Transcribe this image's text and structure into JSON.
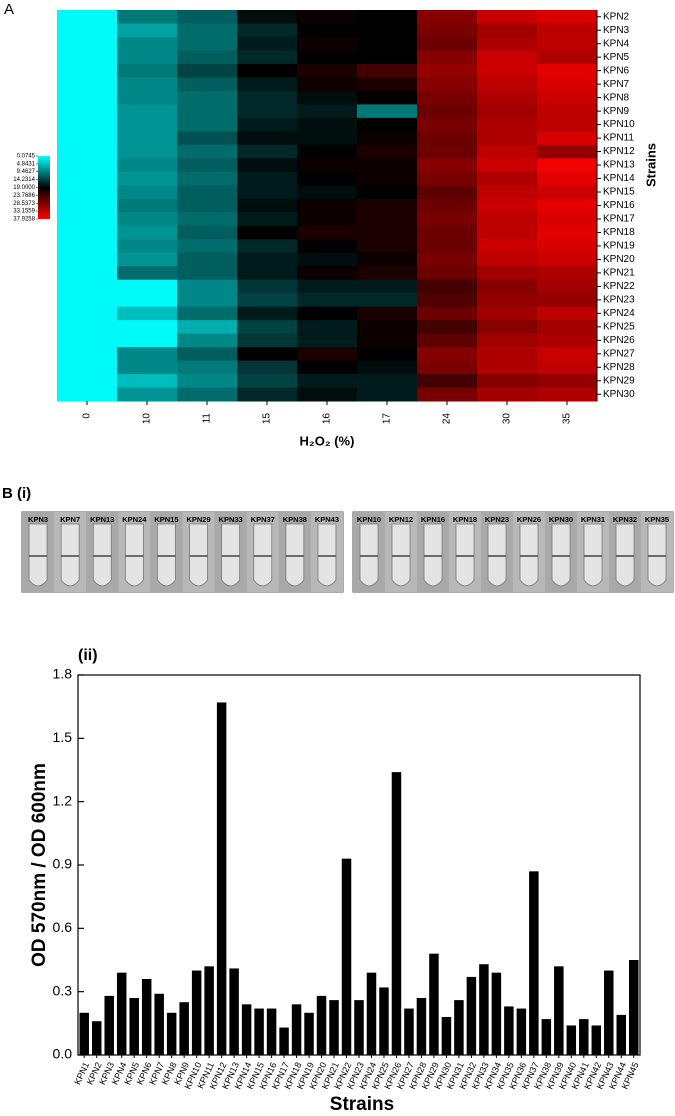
{
  "chart_data": [
    {
      "type": "heatmap",
      "panel_label": "A",
      "x": [
        "0",
        "10",
        "11",
        "15",
        "16",
        "17",
        "24",
        "30",
        "35"
      ],
      "y": [
        "KPN2",
        "KPN3",
        "KPN4",
        "KPN5",
        "KPN6",
        "KPN7",
        "KPN8",
        "KPN9",
        "KPN10",
        "KPN11",
        "KPN12",
        "KPN13",
        "KPN14",
        "KPN15",
        "KPN16",
        "KPN17",
        "KPN18",
        "KPN19",
        "KPN20",
        "KPN21",
        "KPN22",
        "KPN23",
        "KPN24",
        "KPN25",
        "KPN26",
        "KPN27",
        "KPN28",
        "KPN29",
        "KPN30"
      ],
      "z": [
        [
          0.5,
          10,
          12,
          18,
          20,
          19,
          29,
          34,
          35
        ],
        [
          0.5,
          7,
          11,
          16,
          19,
          19,
          28,
          31,
          33
        ],
        [
          0.5,
          9,
          11,
          17,
          20,
          19,
          27,
          32,
          33
        ],
        [
          0.5,
          9,
          12,
          16,
          19,
          19,
          29,
          34,
          32
        ],
        [
          0.5,
          10,
          14,
          19,
          21,
          24,
          30,
          34,
          36
        ],
        [
          0.5,
          9,
          12,
          17,
          20,
          21,
          29,
          33,
          35
        ],
        [
          0.5,
          9,
          11,
          16,
          18,
          19,
          28,
          32,
          34
        ],
        [
          0.5,
          8,
          11,
          16,
          17,
          10,
          27,
          31,
          33
        ],
        [
          0.5,
          8,
          11,
          17,
          18,
          19,
          28,
          32,
          33
        ],
        [
          0.5,
          8,
          13,
          18,
          18,
          20,
          27,
          32,
          35
        ],
        [
          0.5,
          8,
          11,
          16,
          19,
          21,
          27,
          33,
          30
        ],
        [
          0.5,
          9,
          12,
          18,
          20,
          20,
          29,
          34,
          37
        ],
        [
          0.5,
          8,
          11,
          17,
          19,
          20,
          28,
          32,
          36
        ],
        [
          0.5,
          9,
          12,
          17,
          18,
          19,
          26,
          33,
          34
        ],
        [
          0.5,
          10,
          12,
          18,
          20,
          21,
          27,
          34,
          36
        ],
        [
          0.5,
          9,
          11,
          17,
          20,
          21,
          28,
          33,
          35
        ],
        [
          0.5,
          8,
          12,
          19,
          21,
          21,
          27,
          33,
          36
        ],
        [
          0.5,
          9,
          11,
          16,
          19,
          21,
          27,
          34,
          35
        ],
        [
          0.5,
          8,
          12,
          17,
          18,
          20,
          28,
          33,
          34
        ],
        [
          0.5,
          11,
          12,
          17,
          20,
          21,
          27,
          31,
          32
        ],
        [
          0.5,
          0.5,
          9,
          15,
          17,
          17,
          24,
          29,
          31
        ],
        [
          0.5,
          0.5,
          9,
          14,
          16,
          16,
          25,
          30,
          30
        ],
        [
          0.5,
          5,
          11,
          17,
          19,
          21,
          27,
          31,
          33
        ],
        [
          0.5,
          0.5,
          6,
          14,
          17,
          20,
          24,
          29,
          31
        ],
        [
          0.5,
          0.5,
          9,
          15,
          17,
          20,
          26,
          31,
          32
        ],
        [
          0.5,
          9,
          12,
          19,
          21,
          19,
          29,
          32,
          34
        ],
        [
          0.5,
          9,
          10,
          15,
          19,
          18,
          28,
          32,
          33
        ],
        [
          0.5,
          5,
          9,
          14,
          17,
          17,
          24,
          29,
          30
        ],
        [
          0.5,
          8,
          11,
          16,
          18,
          17,
          28,
          31,
          32
        ]
      ],
      "zlim": [
        0.0745,
        37.9258
      ],
      "zticks": [
        0.0745,
        4.8431,
        9.4627,
        14.2314,
        {
          "value": 19,
          "label": "19.0000"
        },
        23.7686,
        28.5373,
        33.1559,
        37.9258
      ],
      "colorscale": [
        "#00ffff",
        "#000000",
        "#ff0000"
      ],
      "x_label": "H₂O₂ (%)",
      "y_label": "Strains"
    },
    {
      "type": "bar",
      "panel_label": "(ii)",
      "categories": [
        "KPN1",
        "KPN2",
        "KPN3",
        "KPN4",
        "KPN5",
        "KPN6",
        "KPN7",
        "KPN8",
        "KPN9",
        "KPN10",
        "KPN11",
        "KPN12",
        "KPN13",
        "KPN14",
        "KPN15",
        "KPN16",
        "KPN17",
        "KPN18",
        "KPN19",
        "KPN20",
        "KPN21",
        "KPN22",
        "KPN23",
        "KPN24",
        "KPN25",
        "KPN26",
        "KPN27",
        "KPN28",
        "KPN29",
        "KPN30",
        "KPN31",
        "KPN32",
        "KPN33",
        "KPN34",
        "KPN35",
        "KPN36",
        "KPN37",
        "KPN38",
        "KPN39",
        "KPN40",
        "KPN41",
        "KPN42",
        "KPN43",
        "KPN44",
        "KPN45"
      ],
      "values": [
        0.2,
        0.16,
        0.28,
        0.39,
        0.27,
        0.36,
        0.29,
        0.2,
        0.25,
        0.4,
        0.42,
        1.67,
        0.41,
        0.24,
        0.22,
        0.22,
        0.13,
        0.24,
        0.2,
        0.28,
        0.26,
        0.93,
        0.26,
        0.39,
        0.32,
        1.34,
        0.22,
        0.27,
        0.48,
        0.18,
        0.26,
        0.37,
        0.43,
        0.39,
        0.23,
        0.22,
        0.87,
        0.17,
        0.42,
        0.14,
        0.17,
        0.14,
        0.4,
        0.19,
        0.45
      ],
      "color": "#000000",
      "ylim": [
        0,
        1.8
      ],
      "yticks": [
        {
          "value": 0,
          "label": "0.0"
        },
        0.3,
        0.6,
        0.9,
        1.2,
        1.5,
        1.8
      ],
      "x_label": "Strains",
      "y_label": "OD 570nm / OD 600nm"
    }
  ],
  "photo_panel": {
    "panel_label": "B (i)",
    "groups": [
      [
        "KPN3",
        "KPN7",
        "KPN13",
        "KPN24",
        "KPN15",
        "KPN29",
        "KPN33",
        "KPN37",
        "KPN38",
        "KPN43"
      ],
      [
        "KPN10",
        "KPN12",
        "KPN16",
        "KPN18",
        "KPN23",
        "KPN26",
        "KPN30",
        "KPN31",
        "KPN32",
        "KPN35"
      ]
    ]
  }
}
